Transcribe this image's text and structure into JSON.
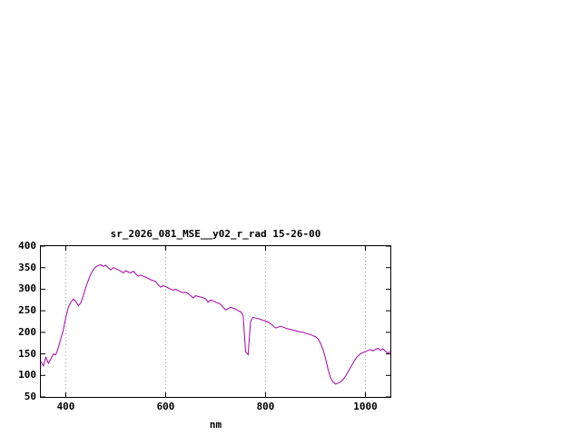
{
  "window": {
    "background": "#ffffff"
  },
  "chart_data": {
    "type": "line",
    "title": "sr_2026_081_MSE__y02_r_rad 15-26-00",
    "xlabel": "nm",
    "ylabel": "",
    "xlim": [
      350,
      1050
    ],
    "ylim": [
      50,
      400
    ],
    "xticks": [
      400,
      600,
      800,
      1000
    ],
    "yticks": [
      50,
      100,
      150,
      200,
      250,
      300,
      350,
      400
    ],
    "grid": "vertical-dotted",
    "legend": "none",
    "line_color": "#aa00aa",
    "series": [
      {
        "x": [
          350,
          355,
          360,
          365,
          370,
          375,
          380,
          385,
          390,
          395,
          400,
          405,
          410,
          415,
          420,
          425,
          430,
          435,
          440,
          445,
          450,
          455,
          460,
          465,
          470,
          475,
          480,
          485,
          490,
          495,
          500,
          505,
          510,
          515,
          520,
          525,
          530,
          535,
          540,
          545,
          550,
          555,
          560,
          565,
          570,
          575,
          580,
          585,
          590,
          595,
          600,
          605,
          610,
          615,
          620,
          625,
          630,
          635,
          640,
          645,
          650,
          655,
          660,
          665,
          670,
          675,
          680,
          685,
          690,
          695,
          700,
          705,
          710,
          715,
          720,
          725,
          730,
          735,
          740,
          745,
          750,
          755,
          760,
          765,
          770,
          775,
          780,
          785,
          790,
          795,
          800,
          805,
          810,
          815,
          820,
          825,
          830,
          835,
          840,
          845,
          850,
          855,
          860,
          865,
          870,
          875,
          880,
          885,
          890,
          895,
          900,
          905,
          910,
          915,
          920,
          925,
          930,
          935,
          940,
          945,
          950,
          955,
          960,
          965,
          970,
          975,
          980,
          985,
          990,
          995,
          1000,
          1005,
          1010,
          1015,
          1020,
          1025,
          1030,
          1035,
          1040,
          1045,
          1050
        ],
        "y": [
          132,
          122,
          142,
          128,
          138,
          150,
          148,
          165,
          185,
          205,
          235,
          258,
          270,
          277,
          272,
          262,
          268,
          285,
          305,
          320,
          335,
          345,
          352,
          355,
          357,
          353,
          356,
          350,
          345,
          350,
          348,
          345,
          342,
          338,
          343,
          340,
          338,
          342,
          336,
          330,
          333,
          330,
          328,
          325,
          322,
          320,
          318,
          310,
          305,
          308,
          306,
          303,
          300,
          298,
          300,
          297,
          294,
          292,
          293,
          290,
          285,
          280,
          285,
          283,
          282,
          280,
          278,
          270,
          275,
          273,
          270,
          268,
          265,
          258,
          252,
          255,
          258,
          256,
          254,
          250,
          248,
          240,
          155,
          148,
          225,
          235,
          233,
          232,
          230,
          228,
          226,
          224,
          220,
          215,
          210,
          212,
          214,
          212,
          210,
          208,
          207,
          205,
          204,
          202,
          201,
          200,
          198,
          196,
          195,
          192,
          190,
          185,
          175,
          160,
          140,
          115,
          95,
          85,
          80,
          82,
          85,
          90,
          98,
          108,
          118,
          128,
          138,
          145,
          150,
          153,
          155,
          158,
          160,
          157,
          160,
          163,
          158,
          162,
          156,
          152,
          155
        ]
      }
    ]
  }
}
